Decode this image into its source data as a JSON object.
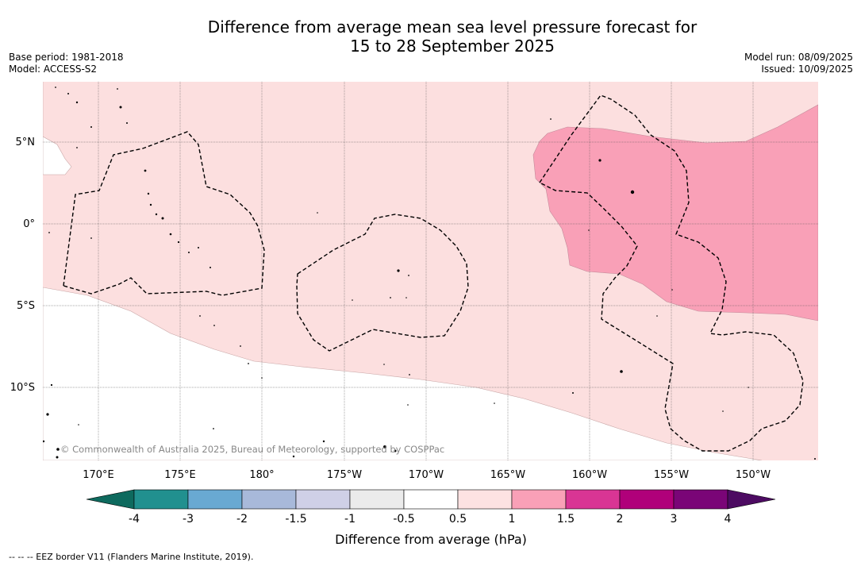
{
  "header": {
    "title_line1": "Difference from average mean sea level pressure forecast for",
    "title_line2": "15 to 28 September 2025",
    "base_period": "Base period: 1981-2018",
    "model": "Model: ACCESS-S2",
    "model_run": "Model run: 08/09/2025",
    "issued": "Issued: 10/09/2025"
  },
  "map": {
    "lat_labels": [
      "5°N",
      "0°",
      "5°S",
      "10°S"
    ],
    "lon_labels": [
      "170°E",
      "175°E",
      "180°",
      "175°W",
      "170°W",
      "165°W",
      "160°W",
      "155°W",
      "150°W"
    ],
    "copyright": "© Commonwealth of Australia 2025, Bureau of Meteorology, supported by COSPPac",
    "colors": {
      "ocean_0.5_to_1": "#fcdfdf",
      "category_1_to_1.5": "#f9a0b7",
      "land": "#ffffff"
    }
  },
  "colorbar": {
    "label": "Difference from average (hPa)",
    "ticks": [
      "-4",
      "-3",
      "-2",
      "-1.5",
      "-1",
      "-0.5",
      "0.5",
      "1",
      "1.5",
      "2",
      "3",
      "4"
    ],
    "under_color": "#0e6a5e",
    "over_color": "#4d0b62",
    "colors": [
      "#21908f",
      "#69a9d2",
      "#a8b9da",
      "#cfd0e7",
      "#ebebeb",
      "#ffffff",
      "#fde2e2",
      "#f9a0b7",
      "#d93594",
      "#b0007a",
      "#7a0577"
    ]
  },
  "footer": {
    "legend_text": "--  --  -- EEZ border V11 (Flanders Marine Institute, 2019)."
  }
}
